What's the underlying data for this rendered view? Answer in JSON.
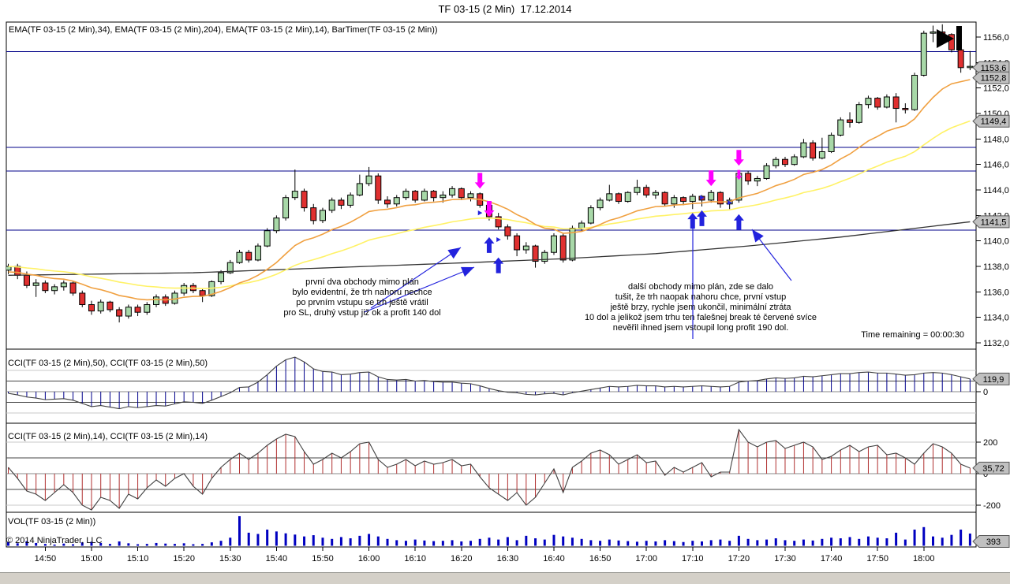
{
  "title": "TF 03-15 (2 Min)  17.12.2014",
  "panels": {
    "price": {
      "label": "EMA(TF 03-15 (2 Min),34), EMA(TF 03-15 (2 Min),204), EMA(TF 03-15 (2 Min),14), BarTimer(TF 03-15 (2 Min))",
      "time_remaining": "Time remaining = 00:00:30",
      "value_tags": [
        {
          "label": "1153,6",
          "value": 1153.6
        },
        {
          "label": "1152,8",
          "value": 1152.8
        },
        {
          "label": "1149,4",
          "value": 1149.4
        },
        {
          "label": "1141,5",
          "value": 1141.5
        }
      ]
    },
    "cci50": {
      "label": "CCI(TF 03-15 (2 Min),50), CCI(TF 03-15 (2 Min),50)",
      "value_tag": {
        "label": "119,9",
        "value": 119.9
      },
      "axis_ticks": [
        {
          "label": "0",
          "value": 0
        }
      ]
    },
    "cci14": {
      "label": "CCI(TF 03-15 (2 Min),14), CCI(TF 03-15 (2 Min),14)",
      "value_tag": {
        "label": "35,72",
        "value": 35.72
      },
      "axis_ticks": [
        {
          "label": "200",
          "value": 200
        },
        {
          "label": "0",
          "value": 0
        },
        {
          "label": "-200",
          "value": -200
        }
      ]
    },
    "volume": {
      "label": "VOL(TF 03-15 (2 Min))",
      "value_tag": {
        "label": "393",
        "value": 393
      }
    },
    "copyright": "© 2014 NinjaTrader, LLC"
  },
  "axes": {
    "price_tick_values": [
      1156,
      1154,
      1152,
      1150,
      1148,
      1146,
      1144,
      1142,
      1140,
      1138,
      1136,
      1134,
      1132
    ],
    "price_tick_labels": [
      "1156,0",
      "1154,0",
      "1152,0",
      "1150,0",
      "1148,0",
      "1146,0",
      "1144,0",
      "1142,0",
      "1140,0",
      "1138,0",
      "1136,0",
      "1134,0",
      "1132,0"
    ],
    "time_tick_labels": [
      "14:50",
      "15:00",
      "15:10",
      "15:20",
      "15:30",
      "15:40",
      "15:50",
      "16:00",
      "16:10",
      "16:20",
      "16:30",
      "16:40",
      "16:50",
      "17:00",
      "17:10",
      "17:20",
      "17:30",
      "17:40",
      "17:50",
      "18:00"
    ]
  },
  "annotations": {
    "trade1": "první dva obchody mimo plán\nbylo evidentní, že trh nahoru nechce\npo prvním vstupu se trh ještě vrátil\npro SL, druhý vstup již ok a profit 140 dol",
    "trade2": "další obchody mimo plán, zde se dalo\ntušit, že trh naopak nahoru chce, první vstup\nještě brzy, rychle jsem ukončil, minimální ztráta\n10 dol a jelikož jsem trhu ten falešnej break té červené svíce\nnevěřil ihned jsem vstoupil long profit 190 dol."
  },
  "chart_data": {
    "type": "candlestick",
    "instrument": "TF 03-15",
    "interval_min": 2,
    "start_time": "14:42",
    "ylim": [
      1132,
      1156
    ],
    "bars_ohlc": [
      [
        1137.7,
        1138.2,
        1137.4,
        1138.0
      ],
      [
        1138.0,
        1138.2,
        1137.0,
        1137.3
      ],
      [
        1137.3,
        1137.6,
        1136.3,
        1136.5
      ],
      [
        1136.5,
        1137.0,
        1135.6,
        1136.7
      ],
      [
        1136.7,
        1136.9,
        1135.9,
        1136.1
      ],
      [
        1136.1,
        1136.6,
        1135.8,
        1136.4
      ],
      [
        1136.4,
        1136.9,
        1136.1,
        1136.7
      ],
      [
        1136.7,
        1136.8,
        1135.7,
        1135.9
      ],
      [
        1135.9,
        1136.1,
        1134.8,
        1135.0
      ],
      [
        1135.0,
        1135.3,
        1134.2,
        1134.5
      ],
      [
        1134.5,
        1135.4,
        1134.3,
        1135.2
      ],
      [
        1135.2,
        1135.3,
        1134.4,
        1134.6
      ],
      [
        1134.6,
        1134.8,
        1133.6,
        1134.1
      ],
      [
        1134.1,
        1135.0,
        1133.9,
        1134.8
      ],
      [
        1134.8,
        1135.0,
        1134.1,
        1134.4
      ],
      [
        1134.4,
        1135.2,
        1134.2,
        1135.0
      ],
      [
        1135.0,
        1135.8,
        1134.8,
        1135.6
      ],
      [
        1135.6,
        1135.8,
        1134.9,
        1135.1
      ],
      [
        1135.1,
        1136.1,
        1135.0,
        1135.9
      ],
      [
        1135.9,
        1136.7,
        1135.7,
        1136.5
      ],
      [
        1136.5,
        1136.7,
        1135.9,
        1136.1
      ],
      [
        1136.1,
        1136.3,
        1135.2,
        1135.7
      ],
      [
        1135.7,
        1136.9,
        1135.6,
        1136.8
      ],
      [
        1136.8,
        1137.7,
        1136.6,
        1137.5
      ],
      [
        1137.5,
        1138.5,
        1137.4,
        1138.3
      ],
      [
        1138.3,
        1139.3,
        1138.2,
        1139.1
      ],
      [
        1139.1,
        1139.3,
        1138.3,
        1138.5
      ],
      [
        1138.5,
        1139.8,
        1138.4,
        1139.6
      ],
      [
        1139.6,
        1141.0,
        1139.5,
        1140.8
      ],
      [
        1140.8,
        1142.0,
        1140.6,
        1141.8
      ],
      [
        1141.8,
        1143.6,
        1141.6,
        1143.4
      ],
      [
        1143.4,
        1145.6,
        1143.2,
        1143.9
      ],
      [
        1143.9,
        1144.1,
        1142.3,
        1142.6
      ],
      [
        1142.6,
        1142.9,
        1141.3,
        1141.6
      ],
      [
        1141.6,
        1142.6,
        1141.4,
        1142.4
      ],
      [
        1142.4,
        1143.4,
        1142.2,
        1143.2
      ],
      [
        1143.2,
        1143.4,
        1142.5,
        1142.8
      ],
      [
        1142.8,
        1143.8,
        1142.6,
        1143.6
      ],
      [
        1143.6,
        1145.2,
        1143.5,
        1144.5
      ],
      [
        1144.5,
        1145.8,
        1144.3,
        1145.1
      ],
      [
        1145.1,
        1145.3,
        1142.9,
        1143.2
      ],
      [
        1143.2,
        1143.5,
        1142.6,
        1142.9
      ],
      [
        1142.9,
        1143.6,
        1142.7,
        1143.4
      ],
      [
        1143.4,
        1144.1,
        1143.2,
        1143.9
      ],
      [
        1143.9,
        1144.0,
        1143.0,
        1143.2
      ],
      [
        1143.2,
        1144.1,
        1143.1,
        1143.9
      ],
      [
        1143.9,
        1144.0,
        1143.1,
        1143.4
      ],
      [
        1143.4,
        1143.9,
        1143.0,
        1143.6
      ],
      [
        1143.6,
        1144.3,
        1143.4,
        1144.1
      ],
      [
        1144.1,
        1144.2,
        1143.2,
        1143.4
      ],
      [
        1143.4,
        1143.9,
        1143.1,
        1143.7
      ],
      [
        1143.7,
        1143.8,
        1142.6,
        1142.8
      ],
      [
        1142.8,
        1142.9,
        1141.6,
        1141.9
      ],
      [
        1141.9,
        1142.2,
        1140.9,
        1141.1
      ],
      [
        1141.1,
        1141.3,
        1140.1,
        1140.4
      ],
      [
        1140.4,
        1140.6,
        1138.8,
        1139.3
      ],
      [
        1139.3,
        1139.9,
        1139.0,
        1139.6
      ],
      [
        1139.6,
        1139.7,
        1137.9,
        1138.4
      ],
      [
        1138.4,
        1139.3,
        1138.2,
        1139.1
      ],
      [
        1139.1,
        1140.6,
        1138.9,
        1140.4
      ],
      [
        1140.4,
        1140.6,
        1138.3,
        1138.5
      ],
      [
        1138.5,
        1141.2,
        1138.4,
        1141.0
      ],
      [
        1141.0,
        1141.6,
        1140.8,
        1141.4
      ],
      [
        1141.4,
        1142.8,
        1141.3,
        1142.6
      ],
      [
        1142.6,
        1143.4,
        1142.4,
        1143.2
      ],
      [
        1143.2,
        1144.4,
        1143.1,
        1143.7
      ],
      [
        1143.7,
        1143.8,
        1142.9,
        1143.1
      ],
      [
        1143.1,
        1143.9,
        1143.0,
        1143.8
      ],
      [
        1143.8,
        1144.8,
        1143.6,
        1144.2
      ],
      [
        1144.2,
        1144.4,
        1143.4,
        1143.6
      ],
      [
        1143.6,
        1144.0,
        1143.3,
        1143.8
      ],
      [
        1143.8,
        1143.9,
        1142.7,
        1142.9
      ],
      [
        1142.9,
        1143.6,
        1142.6,
        1143.4
      ],
      [
        1143.4,
        1143.5,
        1142.8,
        1143.1
      ],
      [
        1143.1,
        1143.7,
        1142.5,
        1143.5
      ],
      [
        1143.5,
        1143.6,
        1142.7,
        1143.2
      ],
      [
        1143.2,
        1144.0,
        1143.0,
        1143.8
      ],
      [
        1143.8,
        1143.9,
        1142.6,
        1142.9
      ],
      [
        1142.9,
        1143.4,
        1142.5,
        1143.2
      ],
      [
        1143.2,
        1145.5,
        1143.0,
        1145.3
      ],
      [
        1145.3,
        1145.5,
        1144.4,
        1144.7
      ],
      [
        1144.7,
        1145.1,
        1144.3,
        1144.9
      ],
      [
        1144.9,
        1146.1,
        1144.8,
        1145.9
      ],
      [
        1145.9,
        1146.6,
        1145.7,
        1146.4
      ],
      [
        1146.4,
        1146.6,
        1145.8,
        1146.0
      ],
      [
        1146.0,
        1146.8,
        1145.9,
        1146.6
      ],
      [
        1146.6,
        1148.0,
        1146.5,
        1147.7
      ],
      [
        1147.7,
        1147.9,
        1146.3,
        1146.5
      ],
      [
        1146.5,
        1148.1,
        1146.4,
        1147.0
      ],
      [
        1147.0,
        1148.5,
        1146.9,
        1148.3
      ],
      [
        1148.3,
        1149.7,
        1148.2,
        1149.5
      ],
      [
        1149.5,
        1150.1,
        1148.9,
        1149.3
      ],
      [
        1149.3,
        1150.9,
        1149.2,
        1150.7
      ],
      [
        1150.7,
        1151.4,
        1150.4,
        1151.2
      ],
      [
        1151.2,
        1151.3,
        1150.3,
        1150.5
      ],
      [
        1150.5,
        1151.5,
        1150.4,
        1151.3
      ],
      [
        1151.3,
        1151.6,
        1149.3,
        1150.4
      ],
      [
        1150.4,
        1150.8,
        1150.0,
        1150.3
      ],
      [
        1150.3,
        1153.2,
        1150.2,
        1153.0
      ],
      [
        1153.0,
        1156.5,
        1152.9,
        1156.3
      ],
      [
        1156.3,
        1156.9,
        1155.6,
        1156.4
      ],
      [
        1156.4,
        1157.0,
        1156.1,
        1156.2
      ],
      [
        1156.2,
        1156.3,
        1154.8,
        1155.0
      ],
      [
        1155.0,
        1155.6,
        1153.2,
        1153.6
      ],
      [
        1153.6,
        1154.9,
        1153.4,
        1153.7
      ]
    ],
    "volume": [
      120,
      80,
      150,
      90,
      60,
      40,
      70,
      50,
      110,
      130,
      90,
      60,
      140,
      80,
      50,
      60,
      90,
      70,
      60,
      80,
      50,
      60,
      110,
      160,
      260,
      950,
      420,
      380,
      520,
      460,
      400,
      360,
      300,
      340,
      260,
      220,
      280,
      240,
      320,
      380,
      300,
      220,
      180,
      160,
      200,
      170,
      150,
      160,
      180,
      140,
      160,
      220,
      260,
      200,
      280,
      180,
      320,
      240,
      200,
      350,
      300,
      260,
      220,
      180,
      160,
      200,
      170,
      150,
      130,
      160,
      140,
      180,
      150,
      120,
      160,
      140,
      180,
      200,
      160,
      320,
      220,
      180,
      200,
      240,
      180,
      160,
      200,
      170,
      220,
      260,
      240,
      280,
      220,
      300,
      260,
      240,
      420,
      200,
      520,
      600,
      300,
      260,
      350,
      520,
      393
    ],
    "cci50": [
      -15,
      -30,
      -50,
      -60,
      -75,
      -70,
      -65,
      -80,
      -110,
      -140,
      -130,
      -145,
      -160,
      -140,
      -150,
      -140,
      -130,
      -135,
      -115,
      -95,
      -100,
      -110,
      -80,
      -45,
      -10,
      40,
      45,
      90,
      160,
      240,
      300,
      325,
      280,
      215,
      190,
      185,
      160,
      165,
      180,
      185,
      140,
      115,
      110,
      115,
      100,
      105,
      95,
      90,
      90,
      80,
      75,
      55,
      30,
      10,
      -5,
      -10,
      -25,
      -30,
      -20,
      -15,
      -30,
      -10,
      5,
      20,
      35,
      50,
      45,
      50,
      60,
      55,
      55,
      45,
      50,
      45,
      50,
      55,
      50,
      45,
      50,
      90,
      100,
      105,
      120,
      130,
      125,
      130,
      145,
      140,
      150,
      160,
      170,
      170,
      180,
      185,
      175,
      175,
      165,
      155,
      160,
      175,
      180,
      175,
      160,
      140,
      119.9
    ],
    "cci14": [
      40,
      -30,
      -110,
      -130,
      -170,
      -120,
      -70,
      -120,
      -200,
      -230,
      -150,
      -170,
      -220,
      -130,
      -160,
      -90,
      -40,
      -80,
      -30,
      0,
      -80,
      -130,
      -30,
      40,
      90,
      130,
      90,
      130,
      180,
      220,
      250,
      235,
      140,
      60,
      90,
      130,
      100,
      140,
      190,
      200,
      90,
      40,
      60,
      90,
      50,
      80,
      60,
      70,
      90,
      50,
      60,
      -20,
      -90,
      -130,
      -170,
      -120,
      -200,
      -150,
      -60,
      30,
      -120,
      40,
      80,
      130,
      150,
      120,
      60,
      90,
      120,
      70,
      80,
      -10,
      40,
      10,
      40,
      70,
      -20,
      10,
      10,
      280,
      200,
      170,
      200,
      210,
      160,
      180,
      200,
      170,
      90,
      110,
      150,
      180,
      140,
      170,
      180,
      120,
      130,
      100,
      60,
      130,
      190,
      170,
      130,
      60,
      35.72
    ],
    "ema204_keypoints": [
      [
        0,
        1137.3
      ],
      [
        20,
        1137.5
      ],
      [
        35,
        1137.9
      ],
      [
        50,
        1138.3
      ],
      [
        60,
        1138.6
      ],
      [
        70,
        1139.0
      ],
      [
        80,
        1139.6
      ],
      [
        90,
        1140.3
      ],
      [
        97,
        1140.9
      ],
      [
        104,
        1141.5
      ]
    ],
    "sr_levels": [
      1154.85,
      1147.35,
      1145.5,
      1140.85
    ],
    "markers": [
      [
        51,
        "down",
        1144.1,
        "m",
        1
      ],
      [
        51,
        "right",
        1142.2,
        "b",
        0
      ],
      [
        52,
        "down",
        1141.9,
        "m",
        1
      ],
      [
        52,
        "up",
        1140.3,
        "b",
        1
      ],
      [
        53,
        "right",
        1140.1,
        "b",
        0
      ],
      [
        53,
        "up",
        1138.7,
        "b",
        1
      ],
      [
        74,
        "up",
        1142.2,
        "b",
        1
      ],
      [
        75,
        "up",
        1142.4,
        "b",
        1
      ],
      [
        75,
        "right",
        1143.4,
        "b",
        0
      ],
      [
        76,
        "down",
        1144.3,
        "m",
        1
      ],
      [
        78,
        "right",
        1143.0,
        "b",
        0
      ],
      [
        79,
        "down",
        1145.9,
        "m",
        1
      ],
      [
        79,
        "down",
        1144.8,
        "m",
        0
      ],
      [
        79,
        "up",
        1142.1,
        "b",
        1
      ]
    ],
    "drawn_arrows": [
      [
        470,
        391,
        584,
        314,
        1
      ],
      [
        462,
        396,
        601,
        339,
        1
      ],
      [
        878,
        430,
        878,
        289,
        0
      ],
      [
        1003,
        356,
        953,
        291,
        1
      ]
    ],
    "colors": {
      "up": "#A8D8A8",
      "down": "#E03030",
      "wick": "#000000",
      "ema14": "#F0A040",
      "ema34": "#FFF266",
      "ema204": "#333333",
      "cci50_bars": "#00008B",
      "cci14_bars": "#B03030",
      "indicator_line": "#404040",
      "volume": "#0000C0",
      "sr_line": "#000088",
      "marker_buy": "#2222DD",
      "marker_sell": "#FF00FF",
      "tag_bg": "#C0C0C0",
      "tag_border": "#555555"
    }
  }
}
